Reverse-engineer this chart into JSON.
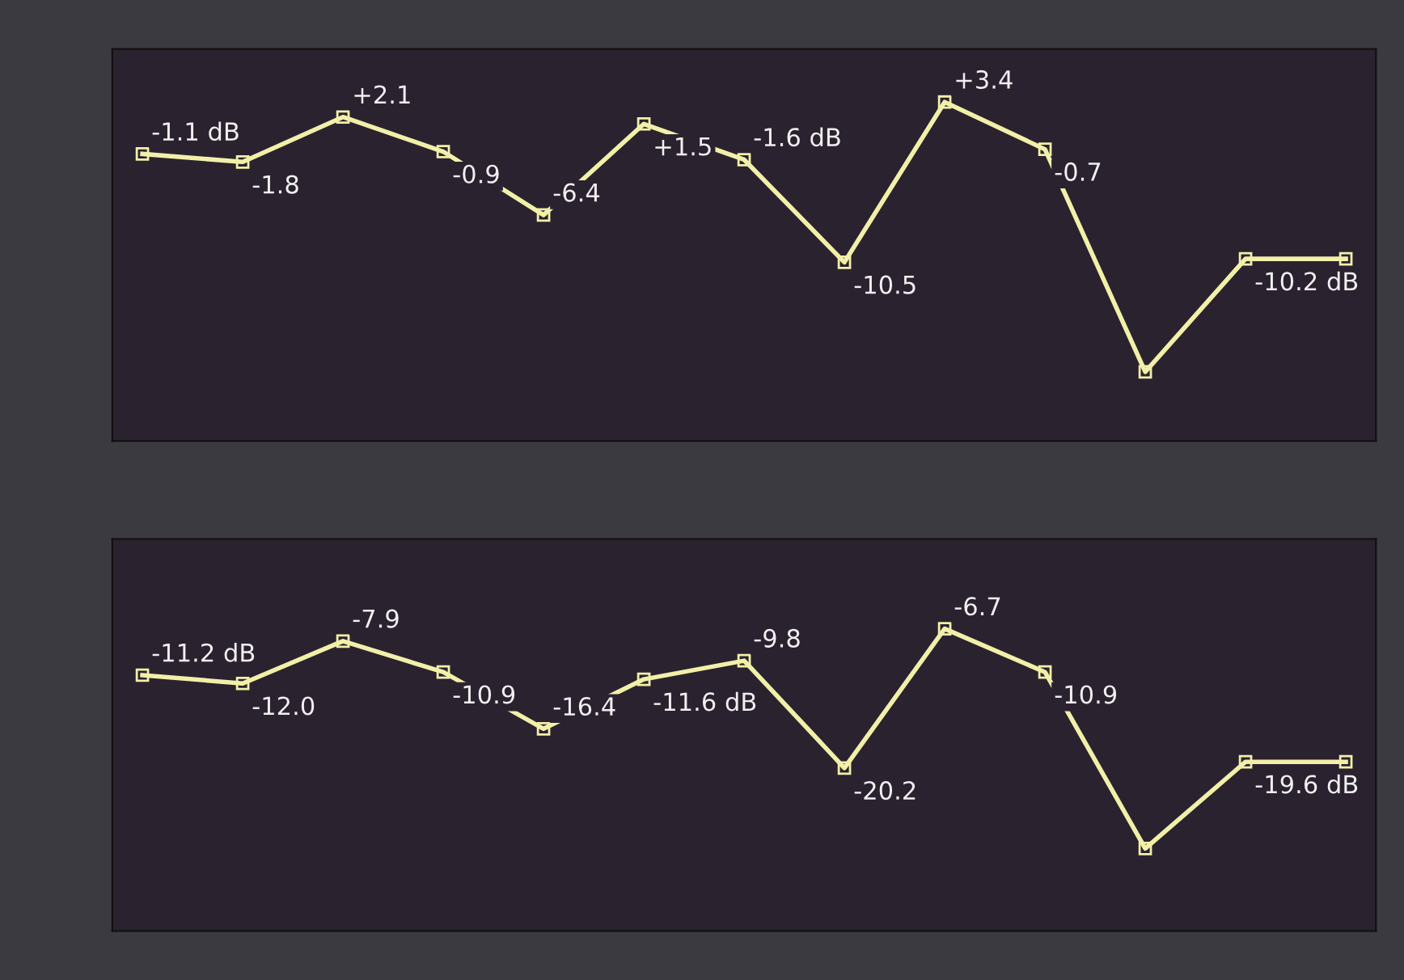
{
  "chart_data": [
    {
      "type": "line",
      "categories": [
        null,
        null,
        null,
        null,
        null,
        null,
        null,
        null,
        null,
        null,
        null,
        null,
        null
      ],
      "values": [
        -1.1,
        -1.8,
        2.1,
        -0.9,
        -6.4,
        1.5,
        -1.6,
        -10.5,
        3.4,
        -0.7,
        -20.0,
        -10.2,
        -10.2
      ],
      "value_labels": [
        "-1.1 dB",
        "-1.8",
        "+2.1",
        "-0.9",
        "-6.4",
        "+1.5",
        "-1.6 dB",
        "-10.5",
        "+3.4",
        "-0.7",
        null,
        "-10.2 dB",
        null
      ],
      "color": "#f2f0a8",
      "marker": "square",
      "line_style": "solid",
      "ylim": [
        -26,
        8
      ],
      "tick_labels": false
    },
    {
      "type": "line",
      "categories": [
        null,
        null,
        null,
        null,
        null,
        null,
        null,
        null,
        null,
        null,
        null,
        null,
        null
      ],
      "values": [
        -11.2,
        -12.0,
        -7.9,
        -10.9,
        -16.4,
        -11.6,
        -9.8,
        -20.2,
        -6.7,
        -10.9,
        -28.0,
        -19.6,
        -19.6
      ],
      "value_labels": [
        "-11.2 dB",
        "-12.0",
        "-7.9",
        "-10.9",
        "-16.4",
        "-11.6 dB",
        "-9.8",
        "-20.2",
        "-6.7",
        "-10.9",
        null,
        "-19.6 dB",
        null
      ],
      "color": "#f2f0a8",
      "marker": "square",
      "line_style": "solid",
      "ylim": [
        -36,
        2
      ],
      "tick_labels": false
    }
  ]
}
